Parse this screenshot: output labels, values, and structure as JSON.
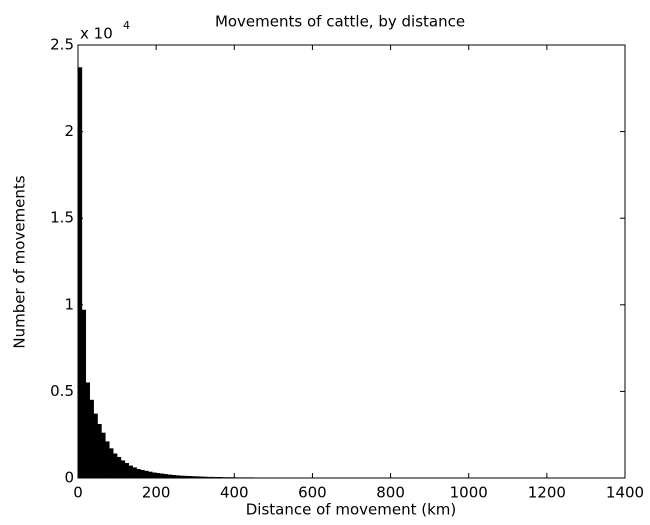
{
  "chart_data": {
    "type": "histogram",
    "title": "Movements of cattle, by distance",
    "xlabel": "Distance of movement (km)",
    "ylabel": "Number of movements",
    "y_multiplier": "x 10",
    "y_multiplier_exponent": "4",
    "bins": [
      0,
      10,
      20,
      30,
      40,
      50,
      60,
      70,
      80,
      90,
      100,
      110,
      120,
      130,
      140,
      150,
      160,
      170,
      180,
      190,
      200,
      210,
      220,
      230,
      240,
      250,
      260,
      270,
      280,
      290,
      300,
      310,
      320,
      330,
      340,
      350,
      360,
      370,
      380,
      390,
      400,
      410,
      420,
      430,
      440,
      450,
      460,
      470,
      480,
      490,
      500
    ],
    "values": [
      2.37,
      0.97,
      0.55,
      0.45,
      0.37,
      0.31,
      0.26,
      0.21,
      0.17,
      0.14,
      0.12,
      0.1,
      0.085,
      0.07,
      0.06,
      0.05,
      0.045,
      0.04,
      0.035,
      0.03,
      0.027,
      0.024,
      0.021,
      0.018,
      0.016,
      0.014,
      0.012,
      0.011,
      0.01,
      0.009,
      0.008,
      0.007,
      0.006,
      0.005,
      0.005,
      0.004,
      0.004,
      0.003,
      0.003,
      0.003,
      0.002,
      0.002,
      0.002,
      0.002,
      0.002,
      0.001,
      0.001,
      0.001,
      0.001,
      0.001
    ],
    "color": "#000000",
    "xlim": [
      0,
      1400
    ],
    "xticks": [
      0,
      200,
      400,
      600,
      800,
      1000,
      1200,
      1400
    ],
    "ylim": [
      0,
      2.5
    ],
    "yticks": [
      0,
      0.5,
      1,
      1.5,
      2,
      2.5
    ],
    "grid": false
  }
}
